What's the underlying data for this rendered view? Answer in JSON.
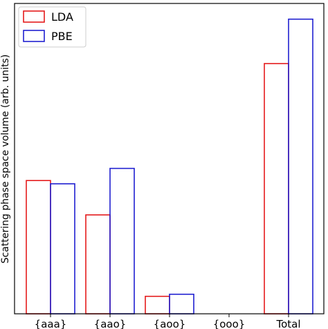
{
  "chart_data": {
    "type": "bar",
    "categories": [
      "{aaa}",
      "{aao}",
      "{aoo}",
      "{ooo}",
      "Total"
    ],
    "series": [
      {
        "name": "LDA",
        "values": [
          45.0,
          33.4,
          5.9,
          0,
          84.5
        ],
        "color": "#e41a1c"
      },
      {
        "name": "PBE",
        "values": [
          43.9,
          49.1,
          6.6,
          0,
          99.5
        ],
        "color": "#1f1fd0"
      }
    ],
    "title": "",
    "xlabel": "",
    "ylabel": "Scattering phase space volume (arb. units)",
    "ylim": [
      0,
      104.8
    ],
    "yticks_visible": false,
    "grid": false,
    "legend_position": "top-left",
    "bar_fill": "none"
  }
}
